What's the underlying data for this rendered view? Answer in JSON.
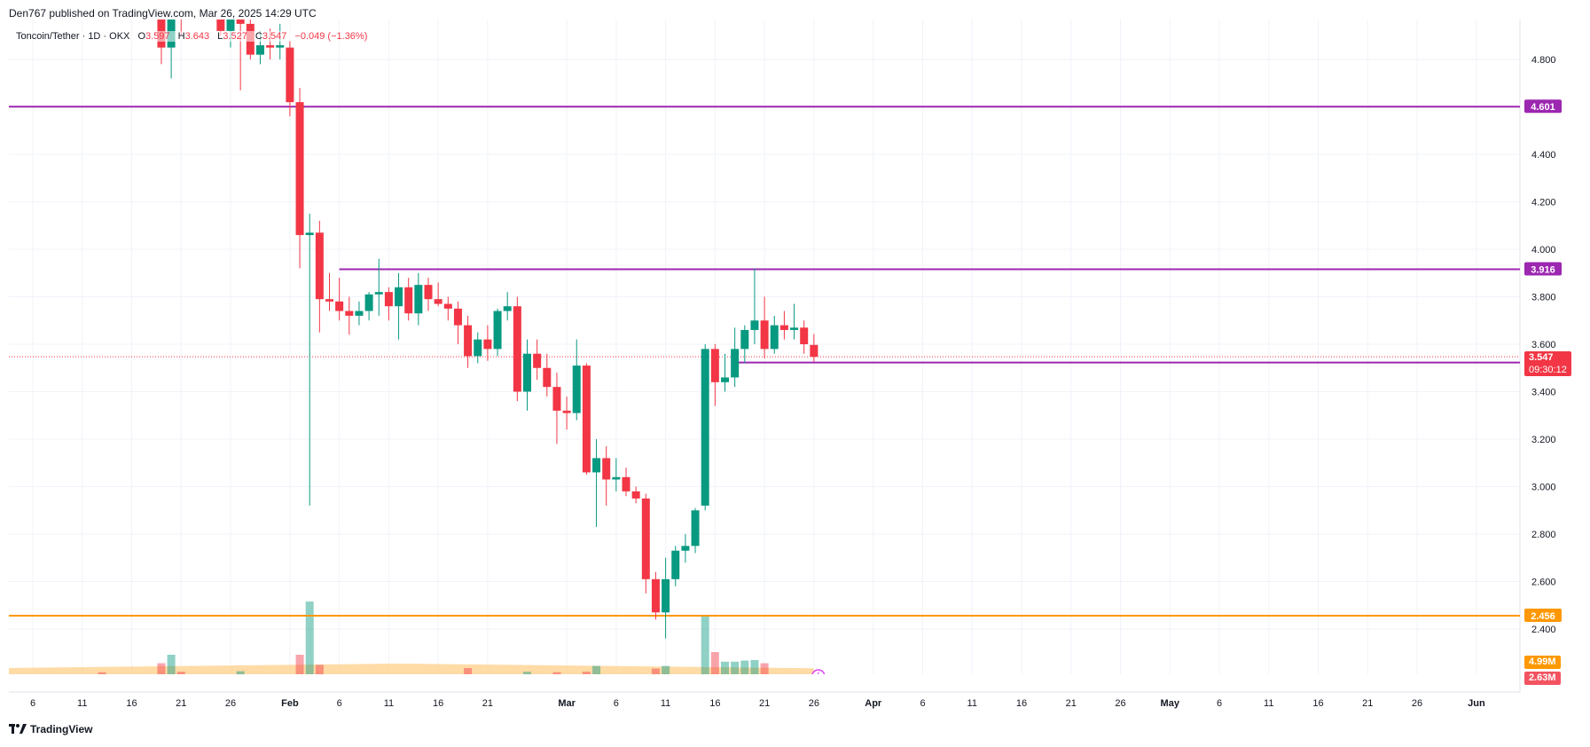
{
  "header": {
    "published": "Den767 published on TradingView.com, Mar 26, 2025 14:29 UTC"
  },
  "legend": {
    "symbol": "Toncoin/Tether · 1D · OKX",
    "o_label": "O",
    "o_value": "3.597",
    "h_label": "H",
    "h_value": "3.643",
    "l_label": "L",
    "l_value": "3.527",
    "c_label": "C",
    "c_value": "3.547",
    "change": "−0.049 (−1.36%)"
  },
  "footer": {
    "brand": "TradingView",
    "logo_icon": "tradingview-logo-icon"
  },
  "colors": {
    "up": "#089981",
    "down": "#f23645",
    "purple": "#9c27b0",
    "orange": "#ff9800",
    "volume_ma": "#ffcc80"
  },
  "price_tags": {
    "current_price": "3.547",
    "countdown": "09:30:12",
    "vol_ma": "4.99M",
    "volume": "2.63M"
  },
  "chart_data": {
    "type": "candlestick",
    "title": "Toncoin/Tether · 1D · OKX",
    "ylim": [
      2.3,
      4.97
    ],
    "y_ticks": [
      2.4,
      2.6,
      2.8,
      3.0,
      3.2,
      3.4,
      3.6,
      3.8,
      4.0,
      4.2,
      4.4,
      4.6,
      4.8
    ],
    "y_tick_labels": [
      "2.400",
      "2.600",
      "2.800",
      "3.000",
      "3.200",
      "3.400",
      "3.600",
      "3.800",
      "4.000",
      "4.200",
      "4.400",
      "4.600",
      "4.800"
    ],
    "x_ticks": [
      {
        "label": "6",
        "date": "2025-01-06"
      },
      {
        "label": "11",
        "date": "2025-01-11"
      },
      {
        "label": "16",
        "date": "2025-01-16"
      },
      {
        "label": "21",
        "date": "2025-01-21"
      },
      {
        "label": "26",
        "date": "2025-01-26"
      },
      {
        "label": "Feb",
        "date": "2025-02-01"
      },
      {
        "label": "6",
        "date": "2025-02-06"
      },
      {
        "label": "11",
        "date": "2025-02-11"
      },
      {
        "label": "16",
        "date": "2025-02-16"
      },
      {
        "label": "21",
        "date": "2025-02-21"
      },
      {
        "label": "Mar",
        "date": "2025-03-01"
      },
      {
        "label": "6",
        "date": "2025-03-06"
      },
      {
        "label": "11",
        "date": "2025-03-11"
      },
      {
        "label": "16",
        "date": "2025-03-16"
      },
      {
        "label": "21",
        "date": "2025-03-21"
      },
      {
        "label": "26",
        "date": "2025-03-26"
      },
      {
        "label": "Apr",
        "date": "2025-04-01"
      },
      {
        "label": "6",
        "date": "2025-04-06"
      },
      {
        "label": "11",
        "date": "2025-04-11"
      },
      {
        "label": "16",
        "date": "2025-04-16"
      },
      {
        "label": "21",
        "date": "2025-04-21"
      },
      {
        "label": "26",
        "date": "2025-04-26"
      },
      {
        "label": "May",
        "date": "2025-05-01"
      },
      {
        "label": "6",
        "date": "2025-05-06"
      },
      {
        "label": "11",
        "date": "2025-05-11"
      },
      {
        "label": "16",
        "date": "2025-05-16"
      },
      {
        "label": "21",
        "date": "2025-05-21"
      },
      {
        "label": "26",
        "date": "2025-05-26"
      },
      {
        "label": "Jun",
        "date": "2025-06-01"
      }
    ],
    "horizontal_lines": [
      {
        "price": 4.601,
        "label": "4.601",
        "color": "#9c27b0",
        "from": "2025-01-03"
      },
      {
        "price": 3.916,
        "label": "3.916",
        "color": "#9c27b0",
        "from": "2025-02-06"
      },
      {
        "price": 3.523,
        "label": "3.523",
        "color": "#9c27b0",
        "from": "2025-03-18"
      },
      {
        "price": 2.456,
        "label": "2.456",
        "color": "#ff9800",
        "from": "2025-01-03"
      }
    ],
    "current_price": 3.547,
    "candles": [
      {
        "d": "2025-01-19",
        "o": 5.0,
        "h": 5.0,
        "l": 4.78,
        "c": 4.85
      },
      {
        "d": "2025-01-20",
        "o": 4.85,
        "h": 5.0,
        "l": 4.72,
        "c": 5.0
      },
      {
        "d": "2025-01-21",
        "o": 5.0,
        "h": 5.0,
        "l": 4.9,
        "c": 4.97
      },
      {
        "d": "2025-01-25",
        "o": 5.0,
        "h": 5.0,
        "l": 4.9,
        "c": 4.92
      },
      {
        "d": "2025-01-26",
        "o": 4.92,
        "h": 5.0,
        "l": 4.85,
        "c": 4.98
      },
      {
        "d": "2025-01-27",
        "o": 5.0,
        "h": 5.0,
        "l": 4.67,
        "c": 4.95
      },
      {
        "d": "2025-01-28",
        "o": 4.95,
        "h": 4.98,
        "l": 4.8,
        "c": 4.82
      },
      {
        "d": "2025-01-29",
        "o": 4.82,
        "h": 4.92,
        "l": 4.78,
        "c": 4.86
      },
      {
        "d": "2025-01-30",
        "o": 4.86,
        "h": 4.93,
        "l": 4.8,
        "c": 4.85
      },
      {
        "d": "2025-01-31",
        "o": 4.85,
        "h": 4.95,
        "l": 4.8,
        "c": 4.86
      },
      {
        "d": "2025-02-01",
        "o": 4.85,
        "h": 4.88,
        "l": 4.56,
        "c": 4.62
      },
      {
        "d": "2025-02-02",
        "o": 4.62,
        "h": 4.68,
        "l": 3.92,
        "c": 4.06
      },
      {
        "d": "2025-02-03",
        "o": 4.06,
        "h": 4.15,
        "l": 2.92,
        "c": 4.07
      },
      {
        "d": "2025-02-04",
        "o": 4.07,
        "h": 4.12,
        "l": 3.65,
        "c": 3.79
      },
      {
        "d": "2025-02-05",
        "o": 3.79,
        "h": 3.9,
        "l": 3.74,
        "c": 3.78
      },
      {
        "d": "2025-02-06",
        "o": 3.78,
        "h": 3.88,
        "l": 3.7,
        "c": 3.74
      },
      {
        "d": "2025-02-07",
        "o": 3.74,
        "h": 3.8,
        "l": 3.64,
        "c": 3.72
      },
      {
        "d": "2025-02-08",
        "o": 3.72,
        "h": 3.78,
        "l": 3.68,
        "c": 3.74
      },
      {
        "d": "2025-02-09",
        "o": 3.74,
        "h": 3.82,
        "l": 3.7,
        "c": 3.81
      },
      {
        "d": "2025-02-10",
        "o": 3.81,
        "h": 3.96,
        "l": 3.72,
        "c": 3.82
      },
      {
        "d": "2025-02-11",
        "o": 3.82,
        "h": 3.84,
        "l": 3.7,
        "c": 3.76
      },
      {
        "d": "2025-02-12",
        "o": 3.76,
        "h": 3.9,
        "l": 3.62,
        "c": 3.84
      },
      {
        "d": "2025-02-13",
        "o": 3.84,
        "h": 3.88,
        "l": 3.7,
        "c": 3.73
      },
      {
        "d": "2025-02-14",
        "o": 3.73,
        "h": 3.9,
        "l": 3.68,
        "c": 3.85
      },
      {
        "d": "2025-02-15",
        "o": 3.85,
        "h": 3.88,
        "l": 3.74,
        "c": 3.79
      },
      {
        "d": "2025-02-16",
        "o": 3.79,
        "h": 3.86,
        "l": 3.76,
        "c": 3.77
      },
      {
        "d": "2025-02-17",
        "o": 3.77,
        "h": 3.8,
        "l": 3.7,
        "c": 3.75
      },
      {
        "d": "2025-02-18",
        "o": 3.75,
        "h": 3.78,
        "l": 3.6,
        "c": 3.68
      },
      {
        "d": "2025-02-19",
        "o": 3.68,
        "h": 3.72,
        "l": 3.5,
        "c": 3.55
      },
      {
        "d": "2025-02-20",
        "o": 3.55,
        "h": 3.65,
        "l": 3.52,
        "c": 3.62
      },
      {
        "d": "2025-02-21",
        "o": 3.62,
        "h": 3.68,
        "l": 3.53,
        "c": 3.58
      },
      {
        "d": "2025-02-22",
        "o": 3.58,
        "h": 3.75,
        "l": 3.55,
        "c": 3.74
      },
      {
        "d": "2025-02-23",
        "o": 3.74,
        "h": 3.82,
        "l": 3.7,
        "c": 3.76
      },
      {
        "d": "2025-02-24",
        "o": 3.76,
        "h": 3.8,
        "l": 3.36,
        "c": 3.4
      },
      {
        "d": "2025-02-25",
        "o": 3.4,
        "h": 3.62,
        "l": 3.32,
        "c": 3.56
      },
      {
        "d": "2025-02-26",
        "o": 3.56,
        "h": 3.62,
        "l": 3.45,
        "c": 3.5
      },
      {
        "d": "2025-02-27",
        "o": 3.5,
        "h": 3.56,
        "l": 3.38,
        "c": 3.42
      },
      {
        "d": "2025-02-28",
        "o": 3.42,
        "h": 3.48,
        "l": 3.18,
        "c": 3.32
      },
      {
        "d": "2025-03-01",
        "o": 3.32,
        "h": 3.38,
        "l": 3.24,
        "c": 3.31
      },
      {
        "d": "2025-03-02",
        "o": 3.31,
        "h": 3.62,
        "l": 3.28,
        "c": 3.51
      },
      {
        "d": "2025-03-03",
        "o": 3.51,
        "h": 3.52,
        "l": 3.05,
        "c": 3.06
      },
      {
        "d": "2025-03-04",
        "o": 3.06,
        "h": 3.2,
        "l": 2.83,
        "c": 3.12
      },
      {
        "d": "2025-03-05",
        "o": 3.12,
        "h": 3.17,
        "l": 2.92,
        "c": 3.03
      },
      {
        "d": "2025-03-06",
        "o": 3.03,
        "h": 3.12,
        "l": 2.98,
        "c": 3.04
      },
      {
        "d": "2025-03-07",
        "o": 3.04,
        "h": 3.08,
        "l": 2.96,
        "c": 2.98
      },
      {
        "d": "2025-03-08",
        "o": 2.98,
        "h": 3.0,
        "l": 2.93,
        "c": 2.95
      },
      {
        "d": "2025-03-09",
        "o": 2.95,
        "h": 2.97,
        "l": 2.55,
        "c": 2.61
      },
      {
        "d": "2025-03-10",
        "o": 2.61,
        "h": 2.64,
        "l": 2.44,
        "c": 2.47
      },
      {
        "d": "2025-03-11",
        "o": 2.47,
        "h": 2.7,
        "l": 2.36,
        "c": 2.61
      },
      {
        "d": "2025-03-12",
        "o": 2.61,
        "h": 2.75,
        "l": 2.58,
        "c": 2.73
      },
      {
        "d": "2025-03-13",
        "o": 2.73,
        "h": 2.8,
        "l": 2.68,
        "c": 2.75
      },
      {
        "d": "2025-03-14",
        "o": 2.75,
        "h": 2.91,
        "l": 2.72,
        "c": 2.9
      },
      {
        "d": "2025-03-15",
        "o": 2.92,
        "h": 3.6,
        "l": 2.9,
        "c": 3.58
      },
      {
        "d": "2025-03-16",
        "o": 3.58,
        "h": 3.6,
        "l": 3.34,
        "c": 3.44
      },
      {
        "d": "2025-03-17",
        "o": 3.44,
        "h": 3.56,
        "l": 3.4,
        "c": 3.46
      },
      {
        "d": "2025-03-18",
        "o": 3.46,
        "h": 3.67,
        "l": 3.42,
        "c": 3.58
      },
      {
        "d": "2025-03-19",
        "o": 3.58,
        "h": 3.68,
        "l": 3.52,
        "c": 3.66
      },
      {
        "d": "2025-03-20",
        "o": 3.66,
        "h": 3.92,
        "l": 3.6,
        "c": 3.7
      },
      {
        "d": "2025-03-21",
        "o": 3.7,
        "h": 3.8,
        "l": 3.54,
        "c": 3.58
      },
      {
        "d": "2025-03-22",
        "o": 3.58,
        "h": 3.72,
        "l": 3.56,
        "c": 3.68
      },
      {
        "d": "2025-03-23",
        "o": 3.68,
        "h": 3.74,
        "l": 3.62,
        "c": 3.66
      },
      {
        "d": "2025-03-24",
        "o": 3.66,
        "h": 3.77,
        "l": 3.62,
        "c": 3.67
      },
      {
        "d": "2025-03-25",
        "o": 3.67,
        "h": 3.7,
        "l": 3.56,
        "c": 3.6
      },
      {
        "d": "2025-03-26",
        "o": 3.597,
        "h": 3.643,
        "l": 3.527,
        "c": 3.547
      }
    ],
    "volume_series": {
      "name": "Volume",
      "units": "M",
      "ma_level": 4.99,
      "last": 2.63,
      "values": [
        {
          "d": "2025-01-03",
          "v": 2.2,
          "up": false
        },
        {
          "d": "2025-01-04",
          "v": 1.8,
          "up": false
        },
        {
          "d": "2025-01-05",
          "v": 2.6,
          "up": false
        },
        {
          "d": "2025-01-06",
          "v": 3.6,
          "up": false
        },
        {
          "d": "2025-01-07",
          "v": 4.8,
          "up": false
        },
        {
          "d": "2025-01-08",
          "v": 3.0,
          "up": true
        },
        {
          "d": "2025-01-09",
          "v": 2.8,
          "up": false
        },
        {
          "d": "2025-01-10",
          "v": 3.2,
          "up": false
        },
        {
          "d": "2025-01-11",
          "v": 2.4,
          "up": false
        },
        {
          "d": "2025-01-12",
          "v": 2.0,
          "up": true
        },
        {
          "d": "2025-01-13",
          "v": 6.4,
          "up": false
        },
        {
          "d": "2025-01-14",
          "v": 3.2,
          "up": true
        },
        {
          "d": "2025-01-15",
          "v": 3.8,
          "up": false
        },
        {
          "d": "2025-01-16",
          "v": 4.0,
          "up": false
        },
        {
          "d": "2025-01-17",
          "v": 3.6,
          "up": false
        },
        {
          "d": "2025-01-18",
          "v": 5.2,
          "up": false
        },
        {
          "d": "2025-01-19",
          "v": 9.8,
          "up": false
        },
        {
          "d": "2025-01-20",
          "v": 13.0,
          "up": true
        },
        {
          "d": "2025-01-21",
          "v": 6.6,
          "up": false
        },
        {
          "d": "2025-01-22",
          "v": 5.0,
          "up": true
        },
        {
          "d": "2025-01-23",
          "v": 4.4,
          "up": false
        },
        {
          "d": "2025-01-24",
          "v": 5.4,
          "up": false
        },
        {
          "d": "2025-01-25",
          "v": 3.8,
          "up": false
        },
        {
          "d": "2025-01-26",
          "v": 3.0,
          "up": false
        },
        {
          "d": "2025-01-27",
          "v": 6.8,
          "up": true
        },
        {
          "d": "2025-01-28",
          "v": 3.2,
          "up": false
        },
        {
          "d": "2025-01-29",
          "v": 2.8,
          "up": true
        },
        {
          "d": "2025-01-30",
          "v": 3.6,
          "up": false
        },
        {
          "d": "2025-01-31",
          "v": 3.0,
          "up": false
        },
        {
          "d": "2025-02-01",
          "v": 4.6,
          "up": false
        },
        {
          "d": "2025-02-02",
          "v": 13.0,
          "up": false
        },
        {
          "d": "2025-02-03",
          "v": 33.0,
          "up": true
        },
        {
          "d": "2025-02-04",
          "v": 9.2,
          "up": false
        },
        {
          "d": "2025-02-05",
          "v": 5.0,
          "up": false
        },
        {
          "d": "2025-02-06",
          "v": 4.6,
          "up": false
        },
        {
          "d": "2025-02-07",
          "v": 4.0,
          "up": false
        },
        {
          "d": "2025-02-08",
          "v": 3.2,
          "up": true
        },
        {
          "d": "2025-02-09",
          "v": 4.4,
          "up": true
        },
        {
          "d": "2025-02-10",
          "v": 3.0,
          "up": false
        },
        {
          "d": "2025-02-11",
          "v": 2.6,
          "up": false
        },
        {
          "d": "2025-02-12",
          "v": 4.2,
          "up": true
        },
        {
          "d": "2025-02-13",
          "v": 3.4,
          "up": false
        },
        {
          "d": "2025-02-14",
          "v": 4.2,
          "up": true
        },
        {
          "d": "2025-02-15",
          "v": 3.6,
          "up": false
        },
        {
          "d": "2025-02-16",
          "v": 3.0,
          "up": false
        },
        {
          "d": "2025-02-17",
          "v": 4.0,
          "up": false
        },
        {
          "d": "2025-02-18",
          "v": 3.6,
          "up": false
        },
        {
          "d": "2025-02-19",
          "v": 8.0,
          "up": false
        },
        {
          "d": "2025-02-20",
          "v": 4.4,
          "up": true
        },
        {
          "d": "2025-02-21",
          "v": 3.6,
          "up": false
        },
        {
          "d": "2025-02-22",
          "v": 3.4,
          "up": true
        },
        {
          "d": "2025-02-23",
          "v": 2.8,
          "up": true
        },
        {
          "d": "2025-02-24",
          "v": 5.2,
          "up": false
        },
        {
          "d": "2025-02-25",
          "v": 6.6,
          "up": true
        },
        {
          "d": "2025-02-26",
          "v": 5.0,
          "up": false
        },
        {
          "d": "2025-02-27",
          "v": 4.6,
          "up": false
        },
        {
          "d": "2025-02-28",
          "v": 6.4,
          "up": false
        },
        {
          "d": "2025-03-01",
          "v": 4.0,
          "up": true
        },
        {
          "d": "2025-03-02",
          "v": 5.0,
          "up": true
        },
        {
          "d": "2025-03-03",
          "v": 6.6,
          "up": false
        },
        {
          "d": "2025-03-04",
          "v": 8.8,
          "up": true
        },
        {
          "d": "2025-03-05",
          "v": 5.6,
          "up": false
        },
        {
          "d": "2025-03-06",
          "v": 4.8,
          "up": false
        },
        {
          "d": "2025-03-07",
          "v": 4.2,
          "up": false
        },
        {
          "d": "2025-03-08",
          "v": 4.6,
          "up": false
        },
        {
          "d": "2025-03-09",
          "v": 5.0,
          "up": false
        },
        {
          "d": "2025-03-10",
          "v": 7.8,
          "up": false
        },
        {
          "d": "2025-03-11",
          "v": 8.8,
          "up": true
        },
        {
          "d": "2025-03-12",
          "v": 5.4,
          "up": true
        },
        {
          "d": "2025-03-13",
          "v": 4.4,
          "up": true
        },
        {
          "d": "2025-03-14",
          "v": 5.0,
          "up": true
        },
        {
          "d": "2025-03-15",
          "v": 28.0,
          "up": true
        },
        {
          "d": "2025-03-16",
          "v": 14.0,
          "up": false
        },
        {
          "d": "2025-03-17",
          "v": 10.4,
          "up": true
        },
        {
          "d": "2025-03-18",
          "v": 10.4,
          "up": true
        },
        {
          "d": "2025-03-19",
          "v": 10.8,
          "up": true
        },
        {
          "d": "2025-03-20",
          "v": 11.0,
          "up": true
        },
        {
          "d": "2025-03-21",
          "v": 9.8,
          "up": false
        },
        {
          "d": "2025-03-22",
          "v": 5.0,
          "up": true
        },
        {
          "d": "2025-03-23",
          "v": 3.6,
          "up": true
        },
        {
          "d": "2025-03-24",
          "v": 3.8,
          "up": true
        },
        {
          "d": "2025-03-25",
          "v": 4.0,
          "up": false
        },
        {
          "d": "2025-03-26",
          "v": 2.63,
          "up": false
        }
      ]
    }
  }
}
